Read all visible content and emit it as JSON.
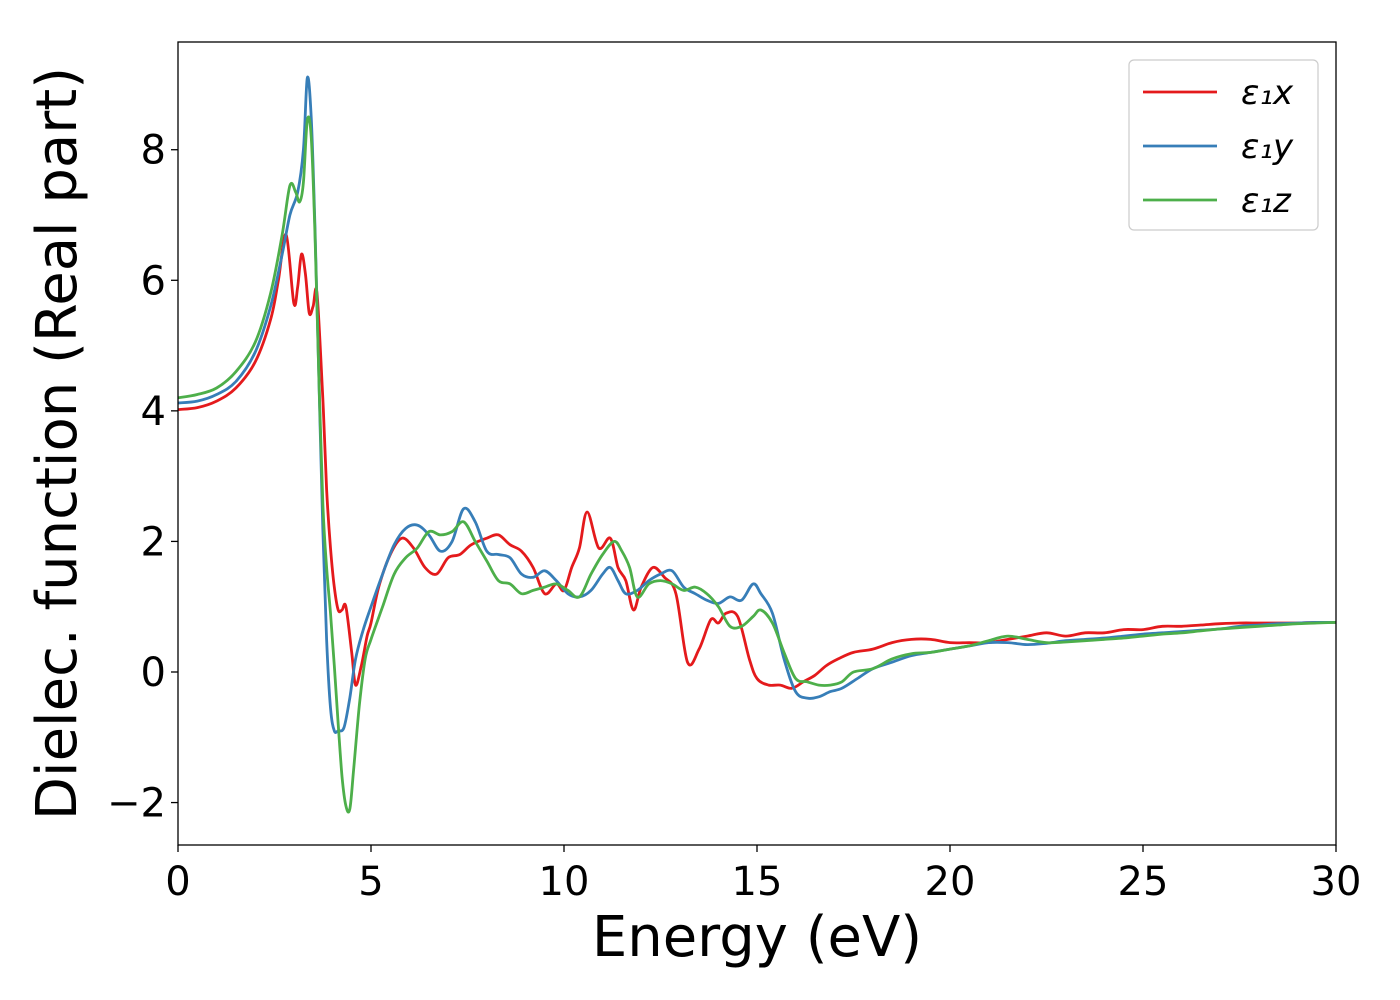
{
  "chart_data": {
    "type": "line",
    "title": "",
    "xlabel": "Energy (eV)",
    "ylabel": "Dielec. function (Real part)",
    "xlim": [
      0,
      30
    ],
    "ylim": [
      -2.65,
      9.65
    ],
    "xticks": [
      0,
      5,
      10,
      15,
      20,
      25,
      30
    ],
    "xtick_labels": [
      "0",
      "5",
      "10",
      "15",
      "20",
      "25",
      "30"
    ],
    "yticks": [
      -2,
      0,
      2,
      4,
      6,
      8
    ],
    "ytick_labels": [
      "−2",
      "0",
      "2",
      "4",
      "6",
      "8"
    ],
    "grid": false,
    "legend_position": "top-right",
    "series": [
      {
        "name": "ε₁x",
        "color": "#e41a1c",
        "x": [
          0,
          0.5,
          1,
          1.5,
          2,
          2.4,
          2.6,
          2.8,
          3.0,
          3.1,
          3.2,
          3.3,
          3.4,
          3.5,
          3.6,
          3.75,
          3.85,
          3.95,
          4.05,
          4.15,
          4.25,
          4.35,
          4.5,
          4.6,
          4.75,
          4.9,
          5.0,
          5.2,
          5.5,
          5.8,
          6.1,
          6.4,
          6.7,
          7.0,
          7.3,
          7.6,
          8.0,
          8.3,
          8.6,
          8.9,
          9.2,
          9.5,
          9.8,
          10.0,
          10.2,
          10.4,
          10.6,
          10.9,
          11.2,
          11.4,
          11.6,
          11.8,
          12.0,
          12.3,
          12.6,
          12.9,
          13.2,
          13.5,
          13.8,
          14.0,
          14.2,
          14.5,
          14.8,
          15.0,
          15.3,
          15.6,
          15.9,
          16.2,
          16.5,
          16.8,
          17.1,
          17.5,
          18.0,
          18.5,
          19.0,
          19.5,
          20.0,
          20.5,
          21.0,
          21.5,
          22.0,
          22.5,
          23.0,
          23.5,
          24.0,
          24.5,
          25.0,
          25.5,
          26.0,
          26.5,
          27.0,
          27.5,
          28.0,
          28.5,
          29.0,
          29.5,
          30.0
        ],
        "y": [
          4.02,
          4.05,
          4.15,
          4.35,
          4.75,
          5.4,
          6.0,
          6.7,
          5.65,
          5.9,
          6.4,
          6.1,
          5.5,
          5.6,
          5.8,
          4.2,
          2.8,
          1.9,
          1.3,
          0.95,
          0.95,
          1.0,
          0.3,
          -0.2,
          0.1,
          0.55,
          0.75,
          1.3,
          1.8,
          2.05,
          1.9,
          1.6,
          1.5,
          1.75,
          1.8,
          1.95,
          2.05,
          2.1,
          1.95,
          1.85,
          1.6,
          1.2,
          1.35,
          1.25,
          1.6,
          1.9,
          2.45,
          1.9,
          2.05,
          1.6,
          1.4,
          0.95,
          1.3,
          1.6,
          1.45,
          1.2,
          0.15,
          0.35,
          0.8,
          0.75,
          0.9,
          0.85,
          0.2,
          -0.1,
          -0.2,
          -0.2,
          -0.25,
          -0.15,
          -0.05,
          0.1,
          0.2,
          0.3,
          0.35,
          0.45,
          0.5,
          0.5,
          0.45,
          0.45,
          0.45,
          0.5,
          0.55,
          0.6,
          0.55,
          0.6,
          0.6,
          0.65,
          0.65,
          0.7,
          0.7,
          0.72,
          0.74,
          0.75,
          0.75,
          0.75,
          0.75,
          0.76,
          0.76
        ]
      },
      {
        "name": "ε₁y",
        "color": "#377eb8",
        "x": [
          0,
          0.5,
          1,
          1.5,
          2,
          2.4,
          2.7,
          2.9,
          3.1,
          3.25,
          3.35,
          3.45,
          3.55,
          3.65,
          3.75,
          3.85,
          3.95,
          4.05,
          4.15,
          4.3,
          4.45,
          4.6,
          4.8,
          5.0,
          5.3,
          5.6,
          5.9,
          6.2,
          6.5,
          6.8,
          7.1,
          7.4,
          7.7,
          8.0,
          8.3,
          8.6,
          8.9,
          9.2,
          9.5,
          9.8,
          10.1,
          10.4,
          10.7,
          11.0,
          11.2,
          11.4,
          11.6,
          11.9,
          12.2,
          12.5,
          12.8,
          13.1,
          13.4,
          13.7,
          14.0,
          14.3,
          14.6,
          14.9,
          15.1,
          15.4,
          15.7,
          16.0,
          16.3,
          16.6,
          16.9,
          17.2,
          17.6,
          18.0,
          18.5,
          19.0,
          19.5,
          20.0,
          20.5,
          21.0,
          21.5,
          22.0,
          22.5,
          23.0,
          23.5,
          24.0,
          24.5,
          25.0,
          25.5,
          26.0,
          26.5,
          27.0,
          27.5,
          28.0,
          28.5,
          29.0,
          29.5,
          30.0
        ],
        "y": [
          4.12,
          4.15,
          4.25,
          4.45,
          4.9,
          5.6,
          6.4,
          7.0,
          7.35,
          8.0,
          9.1,
          8.5,
          6.8,
          4.5,
          2.2,
          0.5,
          -0.55,
          -0.9,
          -0.9,
          -0.85,
          -0.4,
          0.2,
          0.65,
          1.0,
          1.5,
          1.95,
          2.2,
          2.25,
          2.1,
          1.85,
          2.0,
          2.5,
          2.3,
          1.85,
          1.8,
          1.75,
          1.5,
          1.45,
          1.55,
          1.4,
          1.2,
          1.15,
          1.25,
          1.5,
          1.6,
          1.4,
          1.2,
          1.25,
          1.4,
          1.5,
          1.55,
          1.3,
          1.2,
          1.1,
          1.05,
          1.15,
          1.1,
          1.35,
          1.2,
          0.9,
          0.2,
          -0.3,
          -0.4,
          -0.38,
          -0.3,
          -0.25,
          -0.1,
          0.05,
          0.15,
          0.25,
          0.3,
          0.35,
          0.4,
          0.45,
          0.45,
          0.42,
          0.44,
          0.48,
          0.5,
          0.52,
          0.55,
          0.58,
          0.6,
          0.62,
          0.64,
          0.66,
          0.7,
          0.72,
          0.74,
          0.75,
          0.76,
          0.76
        ]
      },
      {
        "name": "ε₁z",
        "color": "#4daf4a",
        "x": [
          0,
          0.5,
          1,
          1.5,
          2,
          2.4,
          2.7,
          2.9,
          3.05,
          3.15,
          3.25,
          3.35,
          3.45,
          3.55,
          3.65,
          3.75,
          3.85,
          3.95,
          4.05,
          4.15,
          4.25,
          4.35,
          4.45,
          4.55,
          4.7,
          4.85,
          5.0,
          5.3,
          5.6,
          5.9,
          6.2,
          6.5,
          6.8,
          7.1,
          7.4,
          7.7,
          8.0,
          8.3,
          8.6,
          8.9,
          9.2,
          9.5,
          9.8,
          10.1,
          10.4,
          10.7,
          11.0,
          11.3,
          11.5,
          11.7,
          11.9,
          12.2,
          12.5,
          12.8,
          13.1,
          13.4,
          13.7,
          14.0,
          14.3,
          14.6,
          14.9,
          15.1,
          15.4,
          15.7,
          16.0,
          16.3,
          16.6,
          16.9,
          17.2,
          17.5,
          18.0,
          18.5,
          19.0,
          19.5,
          20.0,
          20.5,
          21.0,
          21.5,
          22.0,
          22.5,
          23.0,
          23.5,
          24.0,
          24.5,
          25.0,
          25.5,
          26.0,
          26.5,
          27.0,
          27.5,
          28.0,
          28.5,
          29.0,
          29.5,
          30.0
        ],
        "y": [
          4.2,
          4.25,
          4.35,
          4.6,
          5.05,
          5.8,
          6.7,
          7.45,
          7.35,
          7.2,
          7.5,
          8.45,
          8.2,
          6.7,
          4.5,
          2.6,
          1.6,
          0.9,
          0.1,
          -0.8,
          -1.6,
          -2.05,
          -2.1,
          -1.5,
          -0.5,
          0.2,
          0.5,
          1.0,
          1.5,
          1.75,
          1.9,
          2.15,
          2.1,
          2.15,
          2.3,
          2.0,
          1.7,
          1.4,
          1.35,
          1.2,
          1.25,
          1.3,
          1.35,
          1.25,
          1.15,
          1.5,
          1.8,
          2.0,
          1.85,
          1.6,
          1.15,
          1.35,
          1.4,
          1.35,
          1.25,
          1.3,
          1.2,
          1.0,
          0.7,
          0.7,
          0.85,
          0.95,
          0.75,
          0.3,
          -0.1,
          -0.15,
          -0.2,
          -0.2,
          -0.15,
          0.0,
          0.05,
          0.2,
          0.28,
          0.3,
          0.35,
          0.4,
          0.48,
          0.55,
          0.5,
          0.45,
          0.46,
          0.48,
          0.5,
          0.52,
          0.55,
          0.58,
          0.6,
          0.63,
          0.66,
          0.68,
          0.7,
          0.72,
          0.74,
          0.75,
          0.76
        ]
      }
    ]
  }
}
